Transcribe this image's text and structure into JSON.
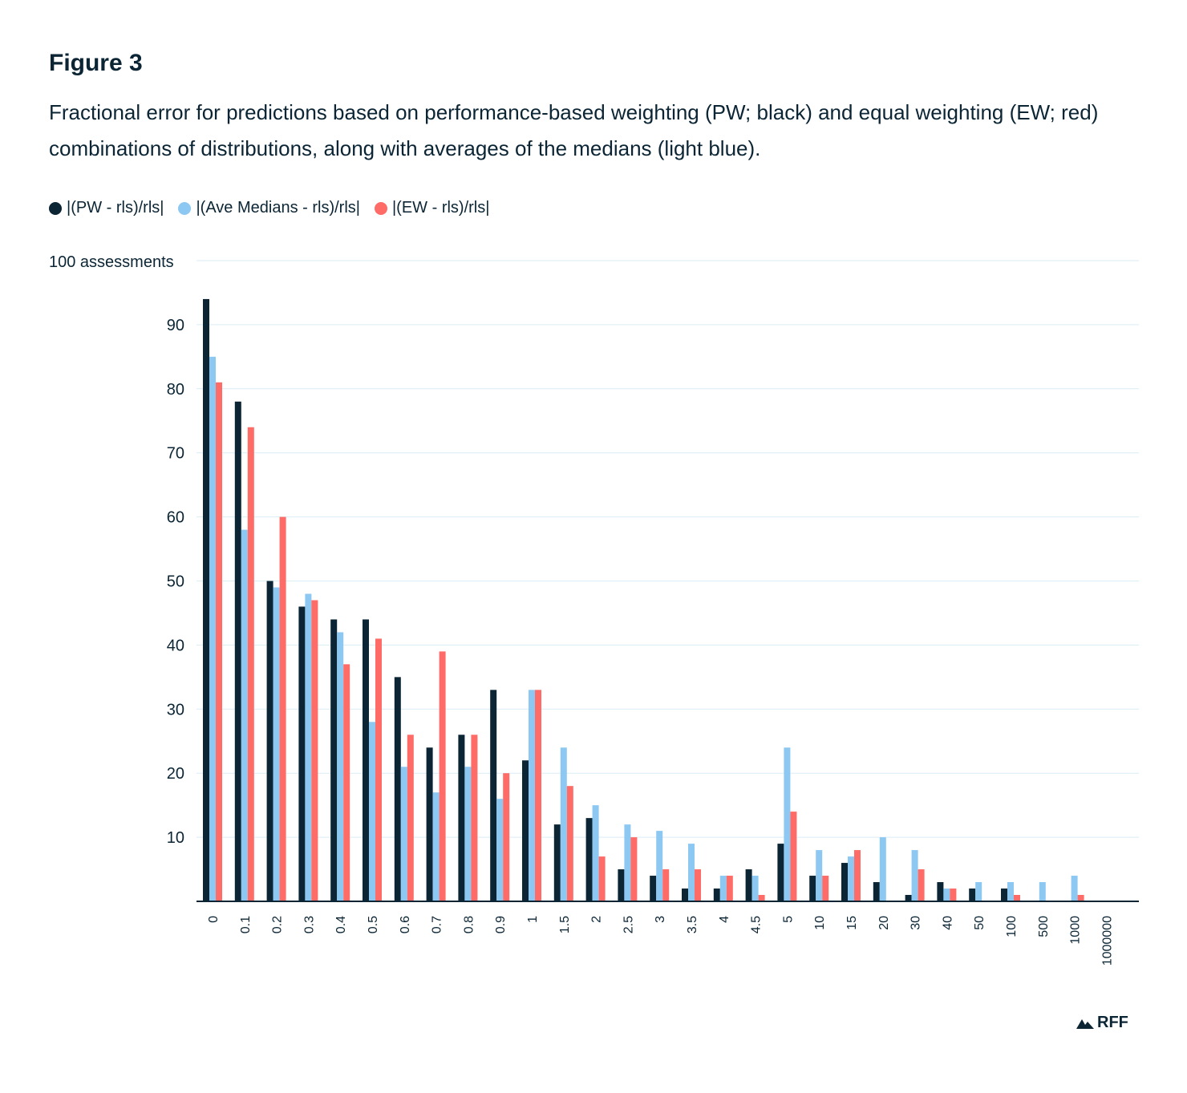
{
  "figure": {
    "label": "Figure 3",
    "title": "Fractional error for predictions based on performance-based weighting (PW; black) and equal weighting (EW; red) combinations of distributions, along with averages of the medians (light blue)."
  },
  "colors": {
    "text": "#0b2535",
    "grid": "#d9eef5",
    "axis": "#0b2535"
  },
  "legend": [
    {
      "label": "|(PW - rls)/rls|",
      "color": "#0b2535"
    },
    {
      "label": "|(Ave Medians - rls)/rls|",
      "color": "#8dc8f3"
    },
    {
      "label": "|(EW - rls)/rls|",
      "color": "#ff6b66"
    }
  ],
  "chart_data": {
    "type": "bar",
    "ylabel": "100 assessments",
    "ylim": [
      0,
      100
    ],
    "yticks": [
      10,
      20,
      30,
      40,
      50,
      60,
      70,
      80,
      90
    ],
    "grid": true,
    "legend_position": "top-left",
    "categories": [
      "0",
      "0.1",
      "0.2",
      "0.3",
      "0.4",
      "0.5",
      "0.6",
      "0.7",
      "0.8",
      "0.9",
      "1",
      "1.5",
      "2",
      "2.5",
      "3",
      "3.5",
      "4",
      "4.5",
      "5",
      "10",
      "15",
      "20",
      "30",
      "40",
      "50",
      "100",
      "500",
      "1000",
      "1000000"
    ],
    "series": [
      {
        "name": "|(PW - rls)/rls|",
        "color": "#0b2535",
        "values": [
          94,
          78,
          50,
          46,
          44,
          44,
          35,
          24,
          26,
          33,
          22,
          12,
          13,
          5,
          4,
          2,
          2,
          5,
          9,
          4,
          6,
          3,
          1,
          3,
          2,
          2,
          0,
          0,
          0
        ]
      },
      {
        "name": "|(Ave Medians - rls)/rls|",
        "color": "#8dc8f3",
        "values": [
          85,
          58,
          49,
          48,
          42,
          28,
          21,
          17,
          21,
          16,
          33,
          24,
          15,
          12,
          11,
          9,
          4,
          4,
          24,
          8,
          7,
          10,
          8,
          2,
          3,
          3,
          3,
          4,
          0
        ]
      },
      {
        "name": "|(EW - rls)/rls|",
        "color": "#ff6b66",
        "values": [
          81,
          74,
          60,
          47,
          37,
          41,
          26,
          39,
          26,
          20,
          33,
          18,
          7,
          10,
          5,
          5,
          4,
          1,
          14,
          4,
          8,
          0,
          5,
          2,
          0,
          1,
          0,
          1,
          0
        ]
      }
    ]
  },
  "brand": {
    "name": "RFF"
  }
}
